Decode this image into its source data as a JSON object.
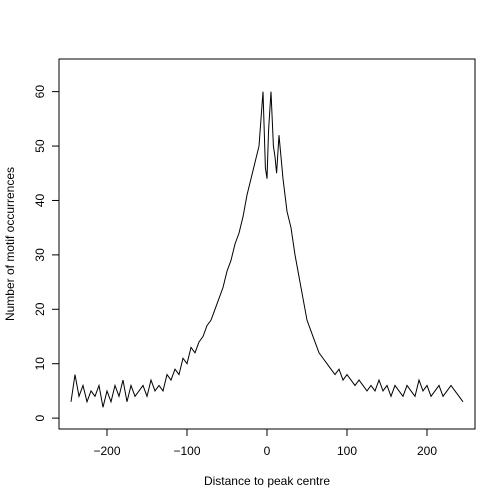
{
  "chart_data": {
    "type": "line",
    "title": "",
    "xlabel": "Distance to peak centre",
    "ylabel": "Number of motif occurrences",
    "xlim": [
      -260,
      260
    ],
    "ylim": [
      -2,
      66
    ],
    "x_ticks": [
      -200,
      -100,
      0,
      100,
      200
    ],
    "x_tick_labels": [
      "−200",
      "−100",
      "0",
      "100",
      "200"
    ],
    "y_ticks": [
      0,
      10,
      20,
      30,
      40,
      50,
      60
    ],
    "y_tick_labels": [
      "0",
      "10",
      "20",
      "30",
      "40",
      "50",
      "60"
    ],
    "grid": false,
    "legend": "none",
    "line_color": "#000000",
    "series": [
      {
        "x": [
          -245,
          -240,
          -235,
          -230,
          -225,
          -220,
          -215,
          -210,
          -205,
          -200,
          -195,
          -190,
          -185,
          -180,
          -175,
          -170,
          -165,
          -160,
          -155,
          -150,
          -145,
          -140,
          -135,
          -130,
          -125,
          -120,
          -115,
          -110,
          -105,
          -100,
          -95,
          -90,
          -85,
          -80,
          -75,
          -70,
          -65,
          -60,
          -55,
          -50,
          -45,
          -40,
          -35,
          -30,
          -25,
          -20,
          -15,
          -10,
          -5,
          -2,
          0,
          2,
          5,
          8,
          10,
          12,
          15,
          20,
          25,
          30,
          35,
          40,
          45,
          50,
          55,
          60,
          65,
          70,
          75,
          80,
          85,
          90,
          95,
          100,
          105,
          110,
          115,
          120,
          125,
          130,
          135,
          140,
          145,
          150,
          155,
          160,
          165,
          170,
          175,
          180,
          185,
          190,
          195,
          200,
          205,
          210,
          215,
          220,
          225,
          230,
          235,
          240,
          245
        ],
        "values": [
          3,
          8,
          4,
          6,
          3,
          5,
          4,
          6,
          2,
          5,
          3,
          6,
          4,
          7,
          3,
          6,
          4,
          5,
          6,
          4,
          7,
          5,
          6,
          5,
          8,
          7,
          9,
          8,
          11,
          10,
          13,
          12,
          14,
          15,
          17,
          18,
          20,
          22,
          24,
          27,
          29,
          32,
          34,
          37,
          41,
          44,
          47,
          50,
          60,
          46,
          44,
          53,
          60,
          50,
          48,
          45,
          52,
          44,
          38,
          35,
          30,
          26,
          22,
          18,
          16,
          14,
          12,
          11,
          10,
          9,
          8,
          9,
          7,
          8,
          7,
          6,
          7,
          6,
          5,
          6,
          5,
          7,
          5,
          6,
          4,
          6,
          5,
          4,
          6,
          5,
          4,
          7,
          5,
          6,
          4,
          5,
          6,
          4,
          5,
          6,
          5,
          4,
          3
        ]
      }
    ]
  }
}
